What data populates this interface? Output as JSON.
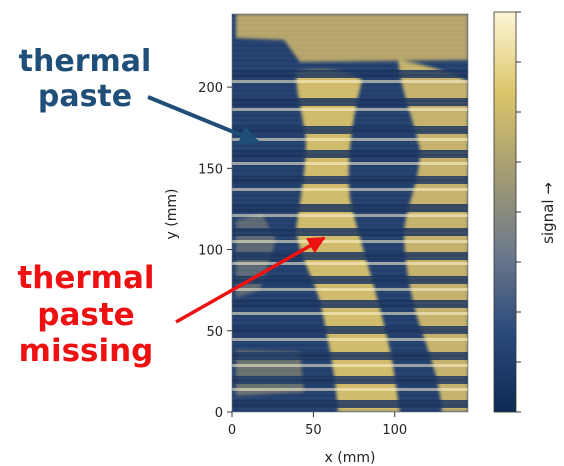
{
  "chart_data": {
    "type": "heatmap",
    "xlabel": "x (mm)",
    "ylabel": "y (mm)",
    "xlim": [
      0,
      145
    ],
    "ylim": [
      0,
      245
    ],
    "x_ticks": [
      "0",
      "50",
      "100"
    ],
    "y_ticks": [
      "0",
      "50",
      "100",
      "150",
      "200"
    ],
    "colorbar": {
      "label": "signal →",
      "colormap": [
        "#0c2a55",
        "#2b4a7c",
        "#6f7a8c",
        "#a49c72",
        "#dcc66b",
        "#fdf6d6"
      ]
    },
    "annotations": [
      {
        "text": "thermal paste",
        "color": "#1f4e79",
        "points_to": {
          "x": 25,
          "y": 168
        }
      },
      {
        "text": "thermal paste missing",
        "color": "#ee1111",
        "points_to": {
          "x": 72,
          "y": 112
        }
      }
    ]
  },
  "labels": {
    "annotation_1_line_1": "thermal",
    "annotation_1_line_2": "paste",
    "annotation_2_line_1": "thermal",
    "annotation_2_line_2": "paste",
    "annotation_2_line_3": "missing",
    "colorbar_label": "signal →"
  }
}
